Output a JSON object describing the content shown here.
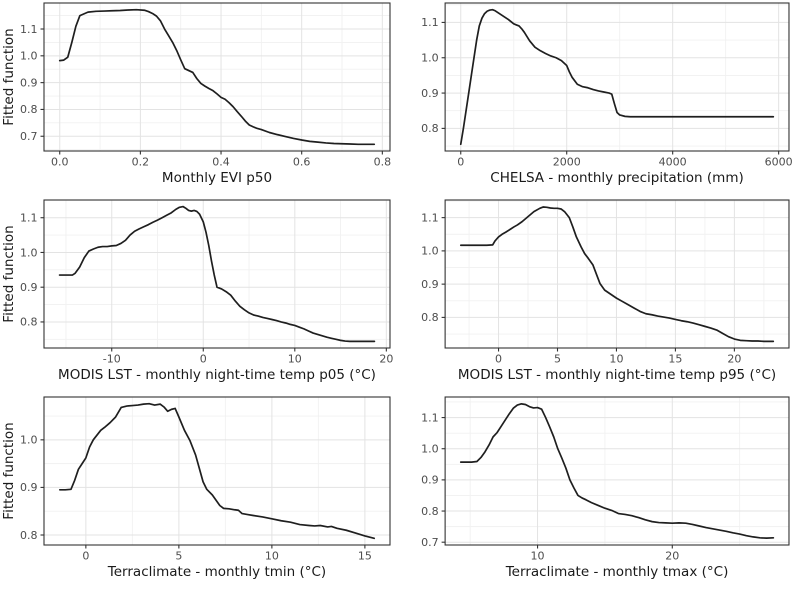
{
  "style": {
    "background": "#ffffff",
    "line_color": "#1f1f1f",
    "panel_border": "#333333",
    "grid_major": "#e3e3e3",
    "grid_minor": "#f1f1f1",
    "tick_color": "#333333",
    "tick_label_color": "#4d4d4d",
    "axis_title_color": "#1a1a1a"
  },
  "shared_ylabel": "Fitted function",
  "chart_data": [
    {
      "type": "line",
      "name": "monthly-evi-p50",
      "xlabel": "Monthly EVI p50",
      "ylabel": "Fitted function",
      "xlim": [
        -0.039,
        0.819
      ],
      "ylim": [
        0.645,
        1.197
      ],
      "xticks": [
        0.0,
        0.2,
        0.4,
        0.6,
        0.8
      ],
      "xtick_labels": [
        "0.0",
        "0.2",
        "0.4",
        "0.6",
        "0.8"
      ],
      "yticks": [
        0.7,
        0.8,
        0.9,
        1.0,
        1.1
      ],
      "ytick_labels": [
        "0.7",
        "0.8",
        "0.9",
        "1.0",
        "1.1"
      ],
      "x": [
        0,
        0.01,
        0.02,
        0.03,
        0.04,
        0.05,
        0.07,
        0.09,
        0.11,
        0.13,
        0.15,
        0.17,
        0.19,
        0.21,
        0.22,
        0.23,
        0.24,
        0.25,
        0.26,
        0.27,
        0.28,
        0.29,
        0.3,
        0.31,
        0.32,
        0.33,
        0.34,
        0.35,
        0.36,
        0.37,
        0.38,
        0.39,
        0.4,
        0.41,
        0.42,
        0.43,
        0.44,
        0.45,
        0.46,
        0.47,
        0.48,
        0.49,
        0.5,
        0.52,
        0.54,
        0.56,
        0.58,
        0.6,
        0.62,
        0.64,
        0.66,
        0.68,
        0.7,
        0.72,
        0.74,
        0.76,
        0.78
      ],
      "y": [
        0.982,
        0.984,
        0.995,
        1.05,
        1.11,
        1.15,
        1.163,
        1.166,
        1.167,
        1.168,
        1.169,
        1.171,
        1.172,
        1.17,
        1.165,
        1.158,
        1.148,
        1.13,
        1.1,
        1.075,
        1.05,
        1.02,
        0.985,
        0.952,
        0.945,
        0.938,
        0.915,
        0.897,
        0.887,
        0.878,
        0.87,
        0.858,
        0.845,
        0.838,
        0.825,
        0.81,
        0.792,
        0.775,
        0.757,
        0.742,
        0.735,
        0.729,
        0.725,
        0.714,
        0.706,
        0.699,
        0.692,
        0.686,
        0.681,
        0.678,
        0.675,
        0.673,
        0.672,
        0.671,
        0.67,
        0.67,
        0.67
      ]
    },
    {
      "type": "line",
      "name": "chelsa-monthly-precipitation",
      "xlabel": "CHELSA - monthly precipitation (mm)",
      "ylabel": null,
      "xlim": [
        -295,
        6195
      ],
      "ylim": [
        0.736,
        1.155
      ],
      "xticks": [
        0,
        2000,
        4000,
        6000
      ],
      "xtick_labels": [
        "0",
        "2000",
        "4000",
        "6000"
      ],
      "yticks": [
        0.8,
        0.9,
        1.0,
        1.1
      ],
      "ytick_labels": [
        "0.8",
        "0.9",
        "1.0",
        "1.1"
      ],
      "x": [
        0,
        50,
        100,
        150,
        200,
        250,
        300,
        350,
        400,
        450,
        500,
        550,
        600,
        650,
        700,
        800,
        900,
        1000,
        1050,
        1100,
        1150,
        1200,
        1300,
        1400,
        1500,
        1600,
        1700,
        1800,
        1900,
        2000,
        2050,
        2100,
        2200,
        2300,
        2400,
        2500,
        2600,
        2700,
        2800,
        2850,
        2900,
        2950,
        3000,
        3100,
        3200,
        3500,
        4000,
        4500,
        5000,
        5500,
        5900
      ],
      "y": [
        0.755,
        0.8,
        0.85,
        0.9,
        0.95,
        1.0,
        1.05,
        1.09,
        1.112,
        1.125,
        1.132,
        1.135,
        1.136,
        1.133,
        1.128,
        1.118,
        1.108,
        1.096,
        1.093,
        1.09,
        1.082,
        1.072,
        1.048,
        1.03,
        1.02,
        1.012,
        1.005,
        1.0,
        0.992,
        0.978,
        0.96,
        0.945,
        0.925,
        0.918,
        0.915,
        0.91,
        0.906,
        0.903,
        0.9,
        0.897,
        0.87,
        0.845,
        0.838,
        0.834,
        0.833,
        0.833,
        0.833,
        0.833,
        0.833,
        0.833,
        0.833
      ]
    },
    {
      "type": "line",
      "name": "modis-lst-night-temp-p05",
      "xlabel": "MODIS LST - monthly night-time temp p05 (°C)",
      "ylabel": "Fitted function",
      "xlim": [
        -17.4,
        20.4
      ],
      "ylim": [
        0.725,
        1.151
      ],
      "xticks": [
        -10,
        0,
        10,
        20
      ],
      "xtick_labels": [
        "-10",
        "0",
        "10",
        "20"
      ],
      "yticks": [
        0.8,
        0.9,
        1.0,
        1.1
      ],
      "ytick_labels": [
        "0.8",
        "0.9",
        "1.0",
        "1.1"
      ],
      "x": [
        -15.7,
        -15,
        -14.3,
        -14,
        -13.5,
        -13,
        -12.5,
        -12,
        -11.5,
        -11,
        -10.5,
        -10,
        -9.5,
        -9,
        -8.5,
        -8,
        -7.5,
        -7,
        -6.5,
        -6,
        -5.5,
        -5,
        -4.5,
        -4,
        -3.5,
        -3,
        -2.6,
        -2.2,
        -1.9,
        -1.6,
        -1.3,
        -1.0,
        -0.7,
        -0.4,
        0,
        0.3,
        0.6,
        0.9,
        1.2,
        1.5,
        2,
        2.5,
        3,
        3.5,
        4,
        4.5,
        5,
        5.5,
        6,
        6.5,
        7,
        7.5,
        8,
        8.5,
        9,
        9.5,
        10,
        10.5,
        11,
        11.5,
        12,
        12.5,
        13,
        13.5,
        14,
        14.5,
        15,
        15.5,
        16,
        17,
        18,
        18.7
      ],
      "y": [
        0.935,
        0.935,
        0.935,
        0.94,
        0.958,
        0.985,
        1.004,
        1.01,
        1.015,
        1.017,
        1.017,
        1.019,
        1.02,
        1.026,
        1.035,
        1.05,
        1.061,
        1.068,
        1.074,
        1.08,
        1.087,
        1.093,
        1.1,
        1.107,
        1.114,
        1.124,
        1.13,
        1.132,
        1.127,
        1.121,
        1.119,
        1.121,
        1.118,
        1.11,
        1.088,
        1.058,
        1.02,
        0.975,
        0.935,
        0.9,
        0.895,
        0.887,
        0.877,
        0.86,
        0.845,
        0.835,
        0.826,
        0.82,
        0.817,
        0.813,
        0.81,
        0.807,
        0.804,
        0.8,
        0.797,
        0.793,
        0.79,
        0.785,
        0.78,
        0.774,
        0.768,
        0.764,
        0.76,
        0.756,
        0.753,
        0.75,
        0.747,
        0.745,
        0.744,
        0.744,
        0.744,
        0.744
      ]
    },
    {
      "type": "line",
      "name": "modis-lst-night-temp-p95",
      "xlabel": "MODIS LST - monthly night-time temp p95 (°C)",
      "ylabel": null,
      "xlim": [
        -4.53,
        24.63
      ],
      "ylim": [
        0.708,
        1.153
      ],
      "xticks": [
        0,
        5,
        10,
        15,
        20
      ],
      "xtick_labels": [
        "0",
        "5",
        "10",
        "15",
        "20"
      ],
      "yticks": [
        0.8,
        0.9,
        1.0,
        1.1
      ],
      "ytick_labels": [
        "0.8",
        "0.9",
        "1.0",
        "1.1"
      ],
      "x": [
        -3.2,
        -2.5,
        -2,
        -1.5,
        -1,
        -0.5,
        -0.3,
        0,
        0.3,
        0.6,
        1,
        1.3,
        1.6,
        2,
        2.5,
        3,
        3.5,
        3.8,
        4.1,
        4.4,
        4.7,
        5,
        5.3,
        5.6,
        6,
        6.3,
        6.6,
        7,
        7.3,
        7.6,
        8,
        8.3,
        8.6,
        9,
        9.5,
        10,
        10.5,
        11,
        11.5,
        12,
        12.5,
        13,
        13.5,
        14,
        14.5,
        15,
        15.5,
        16,
        16.5,
        17,
        17.5,
        18,
        18.5,
        19,
        19.5,
        20,
        20.5,
        21,
        21.5,
        22,
        22.5,
        23,
        23.3
      ],
      "y": [
        1.017,
        1.017,
        1.017,
        1.017,
        1.017,
        1.018,
        1.03,
        1.042,
        1.05,
        1.056,
        1.065,
        1.072,
        1.078,
        1.088,
        1.103,
        1.118,
        1.128,
        1.132,
        1.131,
        1.129,
        1.128,
        1.128,
        1.126,
        1.118,
        1.1,
        1.072,
        1.042,
        1.012,
        0.992,
        0.978,
        0.958,
        0.93,
        0.902,
        0.882,
        0.87,
        0.858,
        0.848,
        0.838,
        0.828,
        0.818,
        0.811,
        0.808,
        0.804,
        0.801,
        0.798,
        0.794,
        0.79,
        0.787,
        0.783,
        0.778,
        0.773,
        0.768,
        0.762,
        0.752,
        0.742,
        0.735,
        0.731,
        0.73,
        0.729,
        0.729,
        0.728,
        0.728,
        0.728
      ]
    },
    {
      "type": "line",
      "name": "terraclimate-monthly-tmin",
      "xlabel": "Terraclimate - monthly tmin (°C)",
      "ylabel": "Fitted function",
      "xlim": [
        -2.25,
        16.35
      ],
      "ylim": [
        0.779,
        1.09
      ],
      "xticks": [
        0,
        5,
        10,
        15
      ],
      "xtick_labels": [
        "0",
        "5",
        "10",
        "15"
      ],
      "yticks": [
        0.8,
        0.9,
        1.0
      ],
      "ytick_labels": [
        "0.8",
        "0.9",
        "1.0"
      ],
      "x": [
        -1.4,
        -1.1,
        -0.8,
        -0.6,
        -0.4,
        -0.2,
        0,
        0.2,
        0.4,
        0.6,
        0.8,
        1.0,
        1.3,
        1.6,
        1.9,
        2.2,
        2.5,
        2.8,
        3.1,
        3.4,
        3.7,
        4.0,
        4.2,
        4.4,
        4.6,
        4.8,
        5.0,
        5.3,
        5.6,
        5.9,
        6.1,
        6.3,
        6.5,
        6.8,
        7.0,
        7.2,
        7.4,
        7.7,
        8.0,
        8.2,
        8.4,
        8.7,
        9.0,
        9.5,
        10.0,
        10.5,
        11.0,
        11.5,
        12.0,
        12.3,
        12.6,
        13.0,
        13.2,
        13.5,
        14.0,
        14.5,
        15.0,
        15.5
      ],
      "y": [
        0.895,
        0.895,
        0.896,
        0.915,
        0.938,
        0.95,
        0.962,
        0.985,
        1.0,
        1.01,
        1.02,
        1.026,
        1.036,
        1.048,
        1.068,
        1.071,
        1.072,
        1.073,
        1.075,
        1.076,
        1.073,
        1.075,
        1.069,
        1.06,
        1.064,
        1.066,
        1.048,
        1.02,
        0.998,
        0.968,
        0.94,
        0.912,
        0.896,
        0.884,
        0.873,
        0.862,
        0.856,
        0.855,
        0.853,
        0.852,
        0.845,
        0.843,
        0.841,
        0.838,
        0.834,
        0.83,
        0.827,
        0.822,
        0.82,
        0.819,
        0.82,
        0.817,
        0.818,
        0.814,
        0.81,
        0.804,
        0.798,
        0.793
      ]
    },
    {
      "type": "line",
      "name": "terraclimate-monthly-tmax",
      "xlabel": "Terraclimate - monthly tmax (°C)",
      "ylabel": null,
      "xlim": [
        3.14,
        28.66
      ],
      "ylim": [
        0.691,
        1.166
      ],
      "xticks": [
        10,
        20
      ],
      "xtick_labels": [
        "10",
        "20"
      ],
      "yticks": [
        0.7,
        0.8,
        0.9,
        1.0,
        1.1
      ],
      "ytick_labels": [
        "0.7",
        "0.8",
        "0.9",
        "1.0",
        "1.1"
      ],
      "x": [
        4.3,
        4.7,
        5.1,
        5.5,
        5.8,
        6.1,
        6.4,
        6.7,
        7.0,
        7.3,
        7.6,
        7.9,
        8.2,
        8.5,
        8.8,
        9.1,
        9.4,
        9.7,
        10.0,
        10.3,
        10.6,
        10.9,
        11.2,
        11.5,
        11.8,
        12.1,
        12.4,
        12.7,
        13.0,
        13.3,
        13.6,
        14.0,
        14.5,
        15.0,
        15.5,
        16.0,
        16.5,
        17.0,
        17.5,
        18.0,
        18.5,
        19.0,
        19.5,
        20.0,
        20.5,
        21.0,
        21.5,
        22.0,
        22.5,
        23.0,
        23.5,
        24.0,
        24.5,
        25.0,
        25.5,
        26.0,
        26.5,
        27.0,
        27.5
      ],
      "y": [
        0.957,
        0.957,
        0.957,
        0.959,
        0.972,
        0.99,
        1.012,
        1.038,
        1.052,
        1.072,
        1.092,
        1.112,
        1.13,
        1.14,
        1.144,
        1.142,
        1.135,
        1.131,
        1.132,
        1.127,
        1.1,
        1.07,
        1.038,
        1.0,
        0.97,
        0.938,
        0.9,
        0.874,
        0.85,
        0.842,
        0.836,
        0.827,
        0.818,
        0.809,
        0.802,
        0.792,
        0.789,
        0.785,
        0.779,
        0.772,
        0.766,
        0.763,
        0.762,
        0.761,
        0.762,
        0.761,
        0.757,
        0.752,
        0.747,
        0.743,
        0.739,
        0.735,
        0.73,
        0.726,
        0.721,
        0.717,
        0.714,
        0.713,
        0.714
      ]
    }
  ]
}
